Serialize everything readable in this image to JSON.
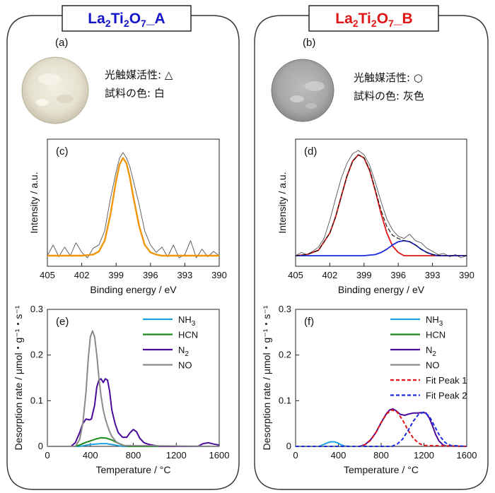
{
  "panels": [
    {
      "title_main": "La",
      "title_sub1": "2",
      "title_mid": "Ti",
      "title_sub2": "2",
      "title_mid2": "O",
      "title_sub3": "7",
      "title_tail": "_A",
      "title_color": "#1515c8",
      "photo_label": "(a)",
      "photo_line1": "光触媒活性: △",
      "photo_line2": "試料の色: 白",
      "photo_color": "light-beige"
    },
    {
      "title_main": "La",
      "title_sub1": "2",
      "title_mid": "Ti",
      "title_sub2": "2",
      "title_mid2": "O",
      "title_sub3": "7",
      "title_tail": "_B",
      "title_color": "#e01515",
      "photo_label": "(b)",
      "photo_line1": "光触媒活性: ○",
      "photo_line2": "試料の色: 灰色",
      "photo_color": "gray"
    }
  ],
  "chart_data": [
    {
      "id": "c",
      "type": "line",
      "panel_label": "(c)",
      "xlabel": "Binding energy / eV",
      "ylabel": "Intensity / a.u.",
      "xlim": [
        405,
        390
      ],
      "x_ticks": [
        405,
        402,
        399,
        396,
        393,
        390
      ],
      "colors": {
        "raw": "#555555",
        "fit": "#f0960a"
      },
      "series": [
        {
          "key": "raw",
          "x": [
            405,
            404.5,
            404,
            403.5,
            403,
            402.5,
            402,
            401.5,
            401,
            400.5,
            400,
            399.5,
            399,
            398.7,
            398.4,
            398.1,
            397.8,
            397.5,
            397,
            396.5,
            396,
            395.5,
            395,
            394.5,
            394,
            393.5,
            393,
            392.5,
            392,
            391.5,
            391,
            390.5,
            390
          ],
          "y": [
            0.02,
            0.12,
            0.01,
            0.1,
            0.02,
            0.14,
            0.05,
            0.0,
            0.09,
            0.12,
            0.25,
            0.55,
            0.8,
            0.93,
            0.98,
            0.93,
            0.85,
            0.72,
            0.5,
            0.25,
            0.12,
            0.05,
            0.1,
            0.01,
            0.12,
            0.0,
            0.03,
            0.16,
            0.0,
            0.08,
            0.01,
            0.06,
            0.02
          ]
        },
        {
          "key": "fit",
          "x": [
            405,
            404,
            403,
            402,
            401,
            400.5,
            400,
            399.5,
            399,
            398.7,
            398.4,
            398.1,
            397.8,
            397.5,
            397,
            396.5,
            396,
            395.5,
            395,
            394,
            393,
            392,
            391,
            390
          ],
          "y": [
            0.02,
            0.02,
            0.02,
            0.02,
            0.03,
            0.06,
            0.16,
            0.4,
            0.72,
            0.87,
            0.93,
            0.88,
            0.75,
            0.57,
            0.3,
            0.12,
            0.05,
            0.03,
            0.02,
            0.02,
            0.02,
            0.02,
            0.02,
            0.02
          ]
        }
      ]
    },
    {
      "id": "d",
      "type": "line",
      "panel_label": "(d)",
      "xlabel": "Binding energy / eV",
      "ylabel": "Intensity / a.u.",
      "xlim": [
        405,
        390
      ],
      "x_ticks": [
        405,
        402,
        399,
        396,
        393,
        390
      ],
      "colors": {
        "raw": "#555555",
        "peak1": "#e01515",
        "peak2": "#1a2ae0",
        "sum": "#111111"
      },
      "series": [
        {
          "key": "raw",
          "x": [
            405,
            404.5,
            404,
            403.5,
            403,
            402.5,
            402,
            401.5,
            401,
            400.5,
            400,
            399.5,
            399,
            398.5,
            398,
            397.5,
            397,
            396.5,
            396,
            395.5,
            395,
            394.5,
            394,
            393.5,
            393,
            392.5,
            392,
            391.5,
            391,
            390.5,
            390
          ],
          "y": [
            0.02,
            0.05,
            0.03,
            0.06,
            0.1,
            0.18,
            0.35,
            0.55,
            0.74,
            0.88,
            0.97,
            1.0,
            0.96,
            0.86,
            0.7,
            0.52,
            0.36,
            0.26,
            0.2,
            0.18,
            0.22,
            0.16,
            0.14,
            0.09,
            0.06,
            0.03,
            0.04,
            0.01,
            0.03,
            0.0,
            0.02
          ]
        },
        {
          "key": "peak1",
          "x": [
            405,
            404,
            403,
            402,
            401.5,
            401,
            400.5,
            400,
            399.5,
            399,
            398.5,
            398,
            397.5,
            397,
            396.5,
            396,
            395.5,
            395,
            394,
            393,
            392,
            391,
            390
          ],
          "y": [
            0.02,
            0.03,
            0.07,
            0.23,
            0.38,
            0.57,
            0.76,
            0.9,
            0.96,
            0.93,
            0.81,
            0.62,
            0.41,
            0.23,
            0.11,
            0.05,
            0.02,
            0.02,
            0.02,
            0.02,
            0.02,
            0.02,
            0.02
          ]
        },
        {
          "key": "peak2",
          "x": [
            405,
            400,
            399,
            398,
            397.5,
            397,
            396.5,
            396,
            395.5,
            395,
            394.5,
            394,
            393.5,
            393,
            392.5,
            392,
            391,
            390
          ],
          "y": [
            0.02,
            0.02,
            0.02,
            0.03,
            0.05,
            0.08,
            0.12,
            0.15,
            0.16,
            0.15,
            0.12,
            0.08,
            0.05,
            0.03,
            0.02,
            0.02,
            0.02,
            0.02
          ]
        },
        {
          "key": "sum",
          "x": [
            405,
            404,
            403,
            402,
            401.5,
            401,
            400.5,
            400,
            399.5,
            399,
            398.5,
            398,
            397.5,
            397,
            396.5,
            396,
            395.5,
            395,
            394.5,
            394,
            393.5,
            393,
            392,
            391,
            390
          ],
          "y": [
            0.02,
            0.03,
            0.07,
            0.23,
            0.38,
            0.57,
            0.76,
            0.9,
            0.96,
            0.93,
            0.82,
            0.63,
            0.44,
            0.29,
            0.21,
            0.18,
            0.16,
            0.15,
            0.12,
            0.08,
            0.05,
            0.03,
            0.02,
            0.02,
            0.02
          ]
        }
      ]
    },
    {
      "id": "e",
      "type": "line",
      "panel_label": "(e)",
      "xlabel": "Temperature / °C",
      "ylabel": "Desorption rate / μmol・g⁻¹・s⁻¹",
      "xlim": [
        0,
        1600
      ],
      "ylim": [
        0,
        0.3
      ],
      "x_ticks": [
        0,
        400,
        800,
        1200,
        1600
      ],
      "y_ticks": [
        0,
        0.1,
        0.2,
        0.3
      ],
      "y_tick_labels": [
        "0",
        "0.1",
        "0.2",
        "0.3"
      ],
      "legend_position": "top-right",
      "series": [
        {
          "name": "NH",
          "name_sub": "3",
          "color": "#1ea0e0",
          "style": "solid",
          "x": [
            0,
            200,
            300,
            350,
            400,
            450,
            500,
            550,
            600,
            650,
            700,
            1600
          ],
          "y": [
            0,
            0,
            0,
            0.002,
            0.004,
            0.005,
            0.006,
            0.006,
            0.004,
            0.002,
            0,
            0
          ]
        },
        {
          "name": "HCN",
          "name_sub": "",
          "color": "#1a8a1a",
          "style": "solid",
          "x": [
            0,
            250,
            300,
            350,
            400,
            450,
            500,
            550,
            600,
            650,
            700,
            750,
            1600
          ],
          "y": [
            0,
            0,
            0.003,
            0.008,
            0.012,
            0.016,
            0.019,
            0.018,
            0.014,
            0.008,
            0.003,
            0,
            0
          ]
        },
        {
          "name": "N",
          "name_sub": "2",
          "color": "#4a0a9a",
          "style": "solid",
          "x": [
            0,
            220,
            260,
            300,
            330,
            360,
            390,
            410,
            440,
            460,
            480,
            500,
            520,
            540,
            560,
            580,
            600,
            630,
            660,
            700,
            740,
            770,
            800,
            830,
            860,
            900,
            950,
            1000,
            1050,
            1400,
            1450,
            1500,
            1550,
            1600
          ],
          "y": [
            0,
            0,
            0.008,
            0.03,
            0.05,
            0.06,
            0.058,
            0.06,
            0.09,
            0.13,
            0.145,
            0.148,
            0.14,
            0.148,
            0.145,
            0.12,
            0.08,
            0.05,
            0.03,
            0.02,
            0.02,
            0.03,
            0.037,
            0.032,
            0.018,
            0.008,
            0.004,
            0.002,
            0,
            0,
            0.006,
            0.008,
            0.005,
            0.003
          ]
        },
        {
          "name": "NO",
          "name_sub": "",
          "color": "#8a8a8a",
          "style": "solid",
          "x": [
            0,
            260,
            300,
            330,
            360,
            380,
            400,
            420,
            440,
            460,
            480,
            500,
            520,
            540,
            560,
            580,
            600,
            640,
            700,
            1600
          ],
          "y": [
            0,
            0,
            0.015,
            0.05,
            0.12,
            0.19,
            0.24,
            0.253,
            0.24,
            0.2,
            0.15,
            0.11,
            0.08,
            0.06,
            0.045,
            0.032,
            0.022,
            0.01,
            0.002,
            0
          ]
        }
      ]
    },
    {
      "id": "f",
      "type": "line",
      "panel_label": "(f)",
      "xlabel": "Temperature / °C",
      "ylabel": "Desorption rate / μmol・g⁻¹・s⁻¹",
      "xlim": [
        0,
        1600
      ],
      "ylim": [
        0,
        0.3
      ],
      "x_ticks": [
        0,
        400,
        800,
        1200,
        1600
      ],
      "y_ticks": [
        0,
        0.1,
        0.2,
        0.3
      ],
      "y_tick_labels": [
        "0",
        "0.1",
        "0.2",
        "0.3"
      ],
      "legend_position": "top-right",
      "series": [
        {
          "name": "NH",
          "name_sub": "3",
          "color": "#1ea0e0",
          "style": "solid",
          "x": [
            0,
            220,
            260,
            300,
            330,
            360,
            390,
            420,
            460,
            500,
            1600
          ],
          "y": [
            0,
            0,
            0.004,
            0.008,
            0.01,
            0.01,
            0.008,
            0.004,
            0.001,
            0,
            0
          ]
        },
        {
          "name": "HCN",
          "name_sub": "",
          "color": "#1a8a1a",
          "style": "solid",
          "x": [
            0,
            1600
          ],
          "y": [
            0,
            0
          ]
        },
        {
          "name": "N",
          "name_sub": "2",
          "color": "#4a0a9a",
          "style": "solid",
          "x": [
            0,
            600,
            650,
            700,
            750,
            800,
            850,
            880,
            910,
            940,
            980,
            1020,
            1060,
            1100,
            1140,
            1180,
            1220,
            1250,
            1280,
            1310,
            1340,
            1380,
            1420,
            1600
          ],
          "y": [
            0,
            0,
            0.004,
            0.014,
            0.03,
            0.052,
            0.072,
            0.08,
            0.082,
            0.078,
            0.07,
            0.068,
            0.071,
            0.073,
            0.073,
            0.074,
            0.073,
            0.062,
            0.045,
            0.026,
            0.012,
            0.003,
            0,
            0
          ]
        },
        {
          "name": "NO",
          "name_sub": "",
          "color": "#8a8a8a",
          "style": "solid",
          "x": [
            0,
            1600
          ],
          "y": [
            0,
            0
          ]
        },
        {
          "name": "Fit Peak 1",
          "name_sub": "",
          "color": "#e01515",
          "style": "dashed",
          "x": [
            0,
            600,
            650,
            700,
            750,
            800,
            850,
            900,
            950,
            1000,
            1050,
            1100,
            1150,
            1200,
            1600
          ],
          "y": [
            0,
            0,
            0.004,
            0.013,
            0.03,
            0.052,
            0.071,
            0.08,
            0.075,
            0.058,
            0.036,
            0.018,
            0.007,
            0.002,
            0
          ]
        },
        {
          "name": "Fit Peak 2",
          "name_sub": "",
          "color": "#1a2ae0",
          "style": "dashed",
          "x": [
            0,
            900,
            950,
            1000,
            1050,
            1100,
            1150,
            1200,
            1250,
            1300,
            1350,
            1400,
            1450,
            1600
          ],
          "y": [
            0,
            0,
            0.005,
            0.016,
            0.034,
            0.055,
            0.07,
            0.075,
            0.066,
            0.044,
            0.022,
            0.008,
            0.002,
            0
          ]
        }
      ]
    }
  ]
}
